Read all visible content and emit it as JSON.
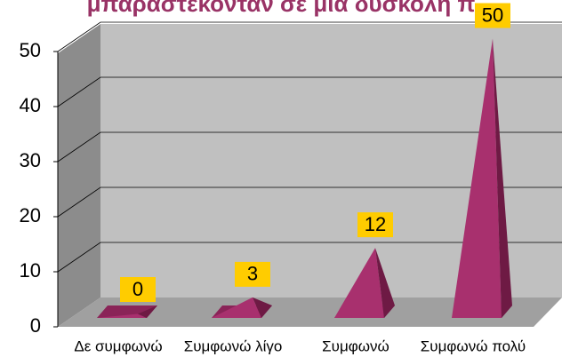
{
  "chart_data": {
    "type": "pyramid",
    "title": "μπαραστεκονταν σε μια δυσκολη π",
    "categories": [
      "Δε συμφωνώ",
      "Συμφωνώ λίγο",
      "Συμφωνώ",
      "Συμφωνώ πολύ"
    ],
    "values": [
      0,
      3,
      12,
      50
    ],
    "color": "#a8306e",
    "ylim": [
      0,
      50
    ],
    "yticks": [
      0,
      10,
      20,
      30,
      40,
      50
    ],
    "grid": true
  }
}
